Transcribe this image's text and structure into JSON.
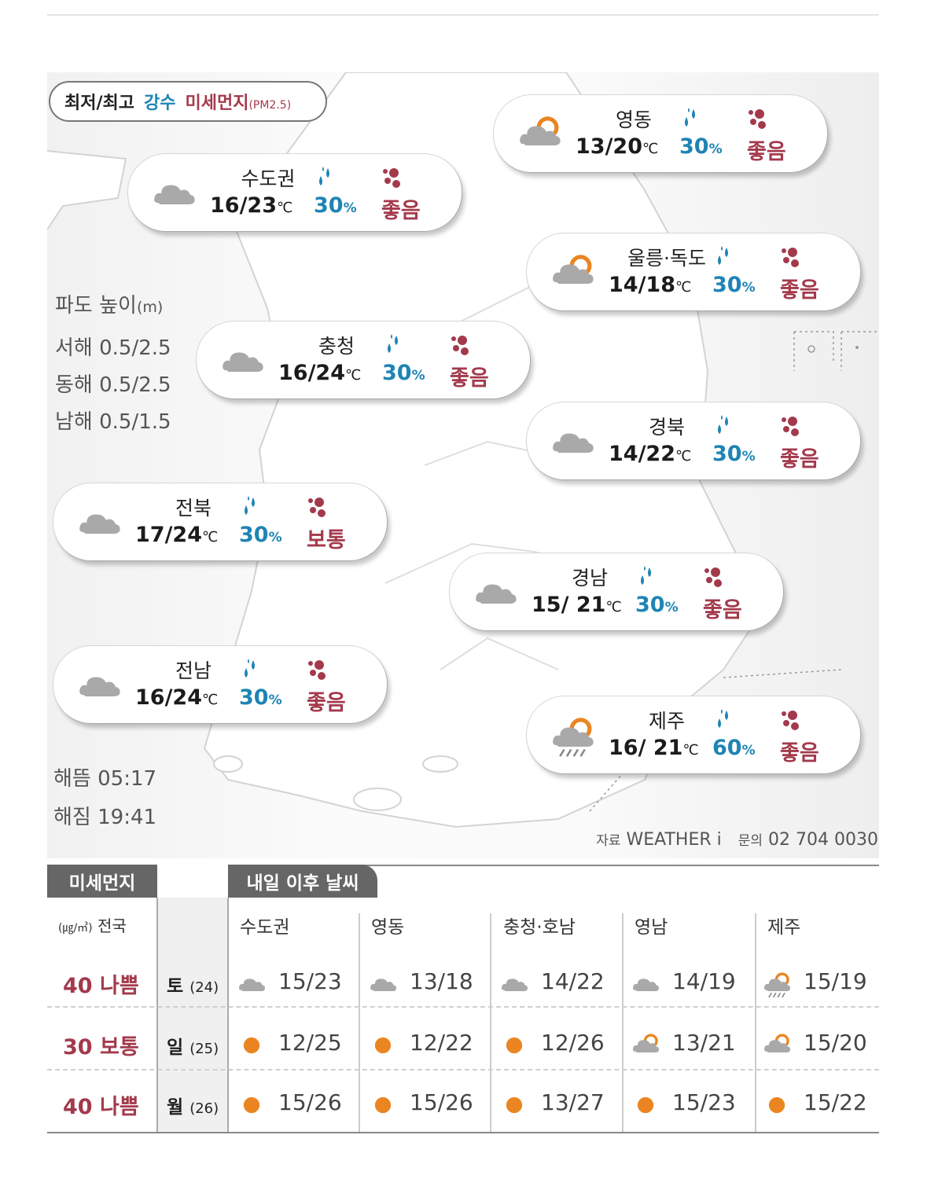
{
  "legend": {
    "temp": "최저/최고",
    "rain": "강수",
    "dust": "미세먼지",
    "dust_sub": "(PM2.5)"
  },
  "units": {
    "celsius": "℃",
    "percent": "%"
  },
  "regions": [
    {
      "name": "수도권",
      "temp": "16/23",
      "rain": "30",
      "dust": "좋음",
      "icon": "cloud-icon"
    },
    {
      "name": "영동",
      "temp": "13/20",
      "rain": "30",
      "dust": "좋음",
      "icon": "sun-cloud-icon"
    },
    {
      "name": "울릉·독도",
      "temp": "14/18",
      "rain": "30",
      "dust": "좋음",
      "icon": "sun-cloud-icon"
    },
    {
      "name": "충청",
      "temp": "16/24",
      "rain": "30",
      "dust": "좋음",
      "icon": "cloud-icon"
    },
    {
      "name": "경북",
      "temp": "14/22",
      "rain": "30",
      "dust": "좋음",
      "icon": "cloud-icon"
    },
    {
      "name": "전북",
      "temp": "17/24",
      "rain": "30",
      "dust": "보통",
      "icon": "cloud-icon"
    },
    {
      "name": "경남",
      "temp": "15/ 21",
      "rain": "30",
      "dust": "좋음",
      "icon": "cloud-icon"
    },
    {
      "name": "전남",
      "temp": "16/24",
      "rain": "30",
      "dust": "좋음",
      "icon": "cloud-icon"
    },
    {
      "name": "제주",
      "temp": "16/ 21",
      "rain": "60",
      "dust": "좋음",
      "icon": "sun-cloud-rain-icon"
    }
  ],
  "waves": {
    "title": "파도 높이",
    "unit": "(m)",
    "items": [
      {
        "sea": "서해",
        "value": "0.5/2.5"
      },
      {
        "sea": "동해",
        "value": "0.5/2.5"
      },
      {
        "sea": "남해",
        "value": "0.5/1.5"
      }
    ]
  },
  "sun": {
    "rise_label": "해뜸",
    "rise": "05:17",
    "set_label": "해짐",
    "set": "19:41"
  },
  "source": {
    "label": "자료",
    "name": "WEATHER i",
    "contact_label": "문의",
    "phone": "02 704 0030"
  },
  "lower": {
    "dust_tab": "미세먼지",
    "forecast_tab": "내일 이후 날씨",
    "dust_unit": "(㎍/㎥)",
    "dust_region": "전국",
    "columns": [
      "수도권",
      "영동",
      "충청·호남",
      "영남",
      "제주"
    ],
    "rows": [
      {
        "day": "토",
        "date": "(24)",
        "dust": "40 나쁨",
        "cells": [
          {
            "t": "15/23",
            "icon": "cloud-icon"
          },
          {
            "t": "13/18",
            "icon": "cloud-icon"
          },
          {
            "t": "14/22",
            "icon": "cloud-icon"
          },
          {
            "t": "14/19",
            "icon": "cloud-icon"
          },
          {
            "t": "15/19",
            "icon": "sun-cloud-rain-icon"
          }
        ]
      },
      {
        "day": "일",
        "date": "(25)",
        "dust": "30 보통",
        "cells": [
          {
            "t": "12/25",
            "icon": "sun-icon"
          },
          {
            "t": "12/22",
            "icon": "sun-icon"
          },
          {
            "t": "12/26",
            "icon": "sun-icon"
          },
          {
            "t": "13/21",
            "icon": "sun-cloud-icon"
          },
          {
            "t": "15/20",
            "icon": "sun-cloud-icon"
          }
        ]
      },
      {
        "day": "월",
        "date": "(26)",
        "dust": "40 나쁨",
        "cells": [
          {
            "t": "15/26",
            "icon": "sun-icon"
          },
          {
            "t": "15/26",
            "icon": "sun-icon"
          },
          {
            "t": "13/27",
            "icon": "sun-icon"
          },
          {
            "t": "15/23",
            "icon": "sun-icon"
          },
          {
            "t": "15/22",
            "icon": "sun-icon"
          }
        ]
      }
    ]
  },
  "colors": {
    "rain": "#1f84b4",
    "dust": "#a33a4c",
    "sun": "#ea8522",
    "cloud": "#a9a9a9"
  }
}
